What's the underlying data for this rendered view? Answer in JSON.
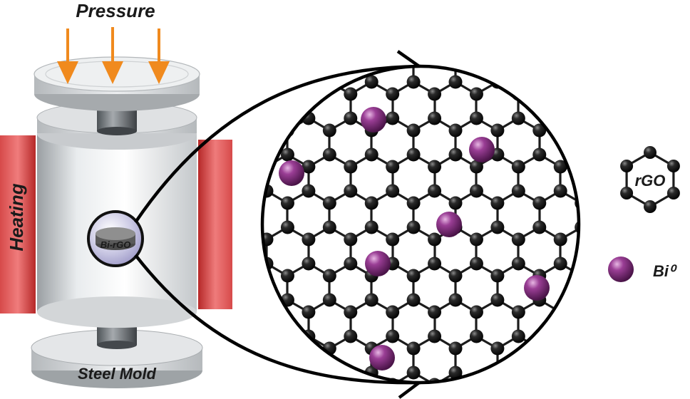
{
  "labels": {
    "pressure": "Pressure",
    "heating": "Heating",
    "steel_mold": "Steel Mold",
    "sample": "Bi-rGO"
  },
  "legend": {
    "rgo": "rGO",
    "bi": "Bi⁰"
  },
  "colors": {
    "arrow": "#f08a1e",
    "heater": "#c73232",
    "carbon": "#1e1e1e",
    "bismuth": "#7a2f78",
    "mold": "#e6e8ea"
  },
  "icons": [
    "pressure-arrow",
    "heater",
    "press",
    "hexagon-lattice",
    "bismuth-sphere"
  ]
}
